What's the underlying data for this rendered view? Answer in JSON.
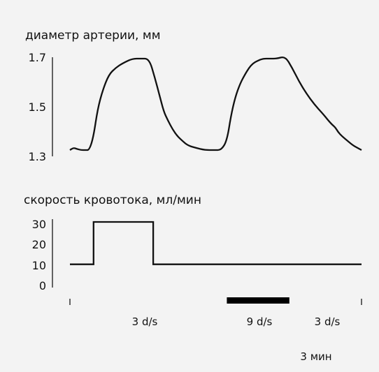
{
  "chart_data": [
    {
      "type": "line",
      "title": "диаметр артерии, мм",
      "y_ticks": [
        "1.7",
        "1.5",
        "1.3"
      ],
      "ylim": [
        1.3,
        1.7
      ],
      "grid": false,
      "series": [
        {
          "x": [
            0,
            5,
            10,
            16,
            22,
            28,
            34,
            40,
            47,
            56,
            66,
            76,
            90,
            102,
            114,
            122,
            129,
            135,
            141,
            148,
            155,
            162,
            170,
            181,
            194,
            208,
            218,
            226,
            232,
            238,
            245,
            252,
            258,
            264,
            270,
            278,
            288,
            298,
            310,
            320,
            330,
            340,
            352,
            364,
            372,
            378,
            382,
            386,
            392,
            400,
            408,
            414,
            420
          ],
          "y": [
            1.3,
            1.31,
            1.305,
            1.3,
            1.3,
            1.3,
            1.36,
            1.48,
            1.56,
            1.63,
            1.66,
            1.68,
            1.7,
            1.7,
            1.7,
            1.62,
            1.54,
            1.47,
            1.43,
            1.39,
            1.36,
            1.34,
            1.32,
            1.31,
            1.3,
            1.3,
            1.3,
            1.34,
            1.45,
            1.53,
            1.59,
            1.63,
            1.66,
            1.68,
            1.69,
            1.7,
            1.7,
            1.7,
            1.71,
            1.66,
            1.6,
            1.55,
            1.5,
            1.46,
            1.43,
            1.41,
            1.4,
            1.38,
            1.36,
            1.34,
            1.32,
            1.31,
            1.3
          ]
        }
      ]
    },
    {
      "type": "line",
      "title": "скорость кровотока, мл/мин",
      "y_ticks": [
        "30",
        "20",
        "10",
        "0"
      ],
      "ylim": [
        0,
        30
      ],
      "grid": false,
      "series": [
        {
          "x": [
            0,
            34,
            34,
            120,
            120,
            420
          ],
          "y": [
            10,
            10,
            30,
            30,
            10,
            10
          ]
        }
      ]
    }
  ],
  "stimulus_bar": {
    "x": [
      226,
      316
    ]
  },
  "annotations": [
    "3 d/s",
    "9 d/s",
    "3 d/s"
  ],
  "time_scale": "3 мин"
}
